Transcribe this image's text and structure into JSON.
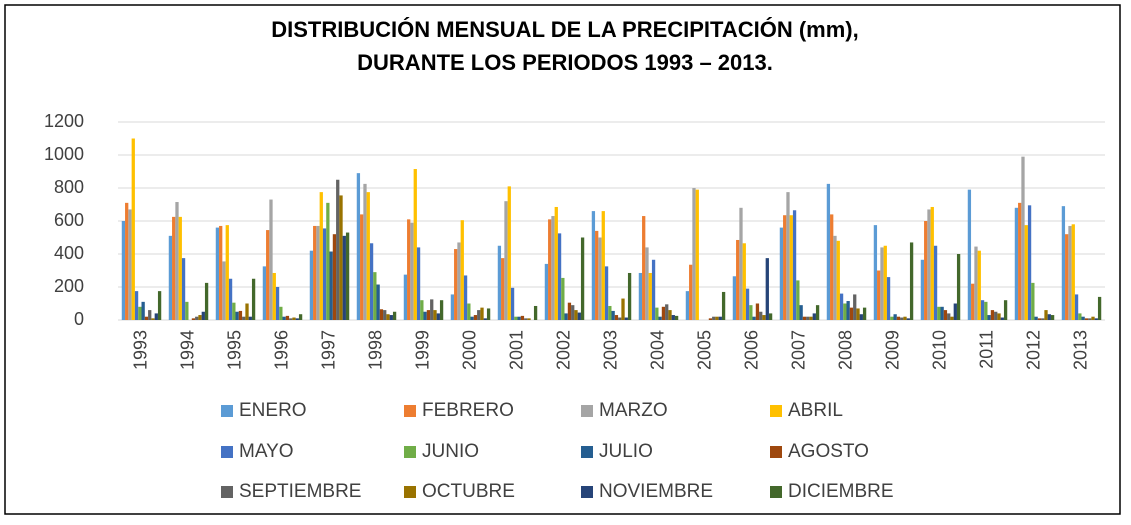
{
  "chart_data": {
    "type": "bar",
    "title": [
      "DISTRIBUCIÓN MENSUAL DE LA PRECIPITACIÓN (mm),",
      "DURANTE LOS PERIODOS 1993 – 2013."
    ],
    "categories": [
      "1993",
      "1994",
      "1995",
      "1996",
      "1997",
      "1998",
      "1999",
      "2000",
      "2001",
      "2002",
      "2003",
      "2004",
      "2005",
      "2006",
      "2007",
      "2008",
      "2009",
      "2010",
      "2011",
      "2012",
      "2013"
    ],
    "series": [
      {
        "name": "ENERO",
        "color": "#5b9bd5",
        "values": [
          600,
          510,
          560,
          325,
          420,
          890,
          275,
          155,
          450,
          340,
          660,
          285,
          175,
          265,
          560,
          825,
          575,
          365,
          790,
          680,
          690
        ]
      },
      {
        "name": "FEBRERO",
        "color": "#ed7d31",
        "values": [
          710,
          625,
          570,
          545,
          570,
          640,
          610,
          430,
          375,
          610,
          540,
          630,
          335,
          485,
          635,
          640,
          300,
          600,
          220,
          710,
          520
        ]
      },
      {
        "name": "MARZO",
        "color": "#a5a5a5",
        "values": [
          670,
          715,
          355,
          730,
          570,
          825,
          590,
          470,
          720,
          630,
          500,
          440,
          800,
          680,
          775,
          510,
          440,
          670,
          445,
          990,
          570
        ]
      },
      {
        "name": "ABRIL",
        "color": "#ffc000",
        "values": [
          1100,
          625,
          575,
          285,
          775,
          775,
          915,
          605,
          810,
          685,
          660,
          285,
          790,
          465,
          635,
          480,
          450,
          685,
          420,
          575,
          580
        ]
      },
      {
        "name": "MAYO",
        "color": "#4472c4",
        "values": [
          175,
          375,
          250,
          200,
          555,
          465,
          440,
          270,
          195,
          525,
          325,
          365,
          0,
          190,
          665,
          160,
          260,
          450,
          120,
          695,
          155
        ]
      },
      {
        "name": "JUNIO",
        "color": "#70ad47",
        "values": [
          80,
          110,
          105,
          80,
          710,
          290,
          120,
          100,
          20,
          255,
          85,
          75,
          0,
          90,
          240,
          100,
          20,
          80,
          110,
          225,
          40
        ]
      },
      {
        "name": "JULIO",
        "color": "#255e91",
        "values": [
          110,
          0,
          50,
          20,
          415,
          215,
          50,
          20,
          20,
          40,
          55,
          20,
          0,
          20,
          90,
          115,
          35,
          80,
          30,
          20,
          20
        ]
      },
      {
        "name": "AGOSTO",
        "color": "#9e480e",
        "values": [
          20,
          10,
          55,
          25,
          520,
          65,
          60,
          30,
          25,
          105,
          30,
          80,
          10,
          100,
          20,
          75,
          20,
          60,
          60,
          10,
          10
        ]
      },
      {
        "name": "SEPTIEMBRE",
        "color": "#636363",
        "values": [
          60,
          20,
          20,
          10,
          850,
          60,
          125,
          60,
          10,
          90,
          15,
          95,
          20,
          50,
          20,
          155,
          15,
          40,
          50,
          10,
          10
        ]
      },
      {
        "name": "OCTUBRE",
        "color": "#997300",
        "values": [
          10,
          30,
          100,
          15,
          755,
          35,
          60,
          75,
          10,
          60,
          130,
          60,
          20,
          30,
          20,
          70,
          20,
          20,
          40,
          60,
          20
        ]
      },
      {
        "name": "NOVIEMBRE",
        "color": "#264478",
        "values": [
          40,
          50,
          20,
          10,
          510,
          30,
          40,
          10,
          0,
          45,
          15,
          30,
          20,
          375,
          40,
          35,
          10,
          100,
          15,
          35,
          10
        ]
      },
      {
        "name": "DICIEMBRE",
        "color": "#43682b",
        "values": [
          175,
          225,
          250,
          35,
          530,
          50,
          120,
          70,
          85,
          500,
          285,
          25,
          170,
          40,
          90,
          75,
          470,
          400,
          120,
          30,
          140
        ]
      }
    ],
    "ylim": [
      0,
      1200
    ],
    "yticks": [
      0,
      200,
      400,
      600,
      800,
      1000,
      1200
    ],
    "grid": true
  }
}
